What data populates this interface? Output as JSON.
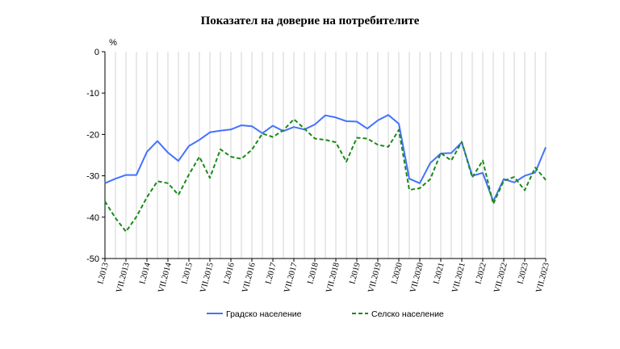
{
  "chart_data": {
    "type": "line",
    "title": "Показател на доверие на потребителите",
    "ylabel": "%",
    "ylim": [
      -50,
      0
    ],
    "yticks": [
      0,
      -10,
      -20,
      -30,
      -40,
      -50
    ],
    "grid": "vertical",
    "legend_position": "bottom",
    "x_tick_labels": [
      "I.2013",
      "VII.2013",
      "I.2014",
      "VII.2014",
      "I.2015",
      "VII.2015",
      "I.2016",
      "VII.2016",
      "I.2017",
      "VII.2017",
      "I.2018",
      "VII.2018",
      "I.2019",
      "VII.2019",
      "I.2020",
      "VII.2020",
      "I.2021",
      "VII.2021",
      "I.2022",
      "VII.2022",
      "I.2023",
      "VII.2023"
    ],
    "series": [
      {
        "name": "Градско население",
        "color": "#4472ff",
        "style": "solid",
        "values": [
          -31.8,
          -30.7,
          -29.8,
          -29.8,
          -24.2,
          -21.6,
          -24.4,
          -26.4,
          -22.8,
          -21.3,
          -19.5,
          -19.1,
          -18.8,
          -17.8,
          -18.0,
          -19.7,
          -17.9,
          -19.2,
          -18.2,
          -18.8,
          -17.6,
          -15.4,
          -15.9,
          -16.8,
          -16.9,
          -18.6,
          -16.6,
          -15.3,
          -17.4,
          -30.7,
          -31.8,
          -26.9,
          -24.6,
          -24.5,
          -21.9,
          -30.0,
          -29.3,
          -36.2,
          -30.8,
          -31.6,
          -30.0,
          -29.2,
          -23.1
        ]
      },
      {
        "name": "Селско население",
        "color": "#1a8a1a",
        "style": "dashed",
        "values": [
          -36.2,
          -40.2,
          -43.5,
          -39.9,
          -35.2,
          -31.3,
          -31.8,
          -34.6,
          -29.7,
          -25.4,
          -30.5,
          -23.6,
          -25.4,
          -25.9,
          -23.7,
          -19.8,
          -20.6,
          -19.0,
          -16.3,
          -18.6,
          -21.0,
          -21.3,
          -21.9,
          -26.6,
          -20.8,
          -21.0,
          -22.5,
          -23.0,
          -18.9,
          -33.4,
          -33.0,
          -30.8,
          -24.5,
          -26.3,
          -21.8,
          -30.4,
          -26.3,
          -36.8,
          -31.2,
          -30.3,
          -33.5,
          -28.0,
          -31.0
        ]
      }
    ]
  }
}
